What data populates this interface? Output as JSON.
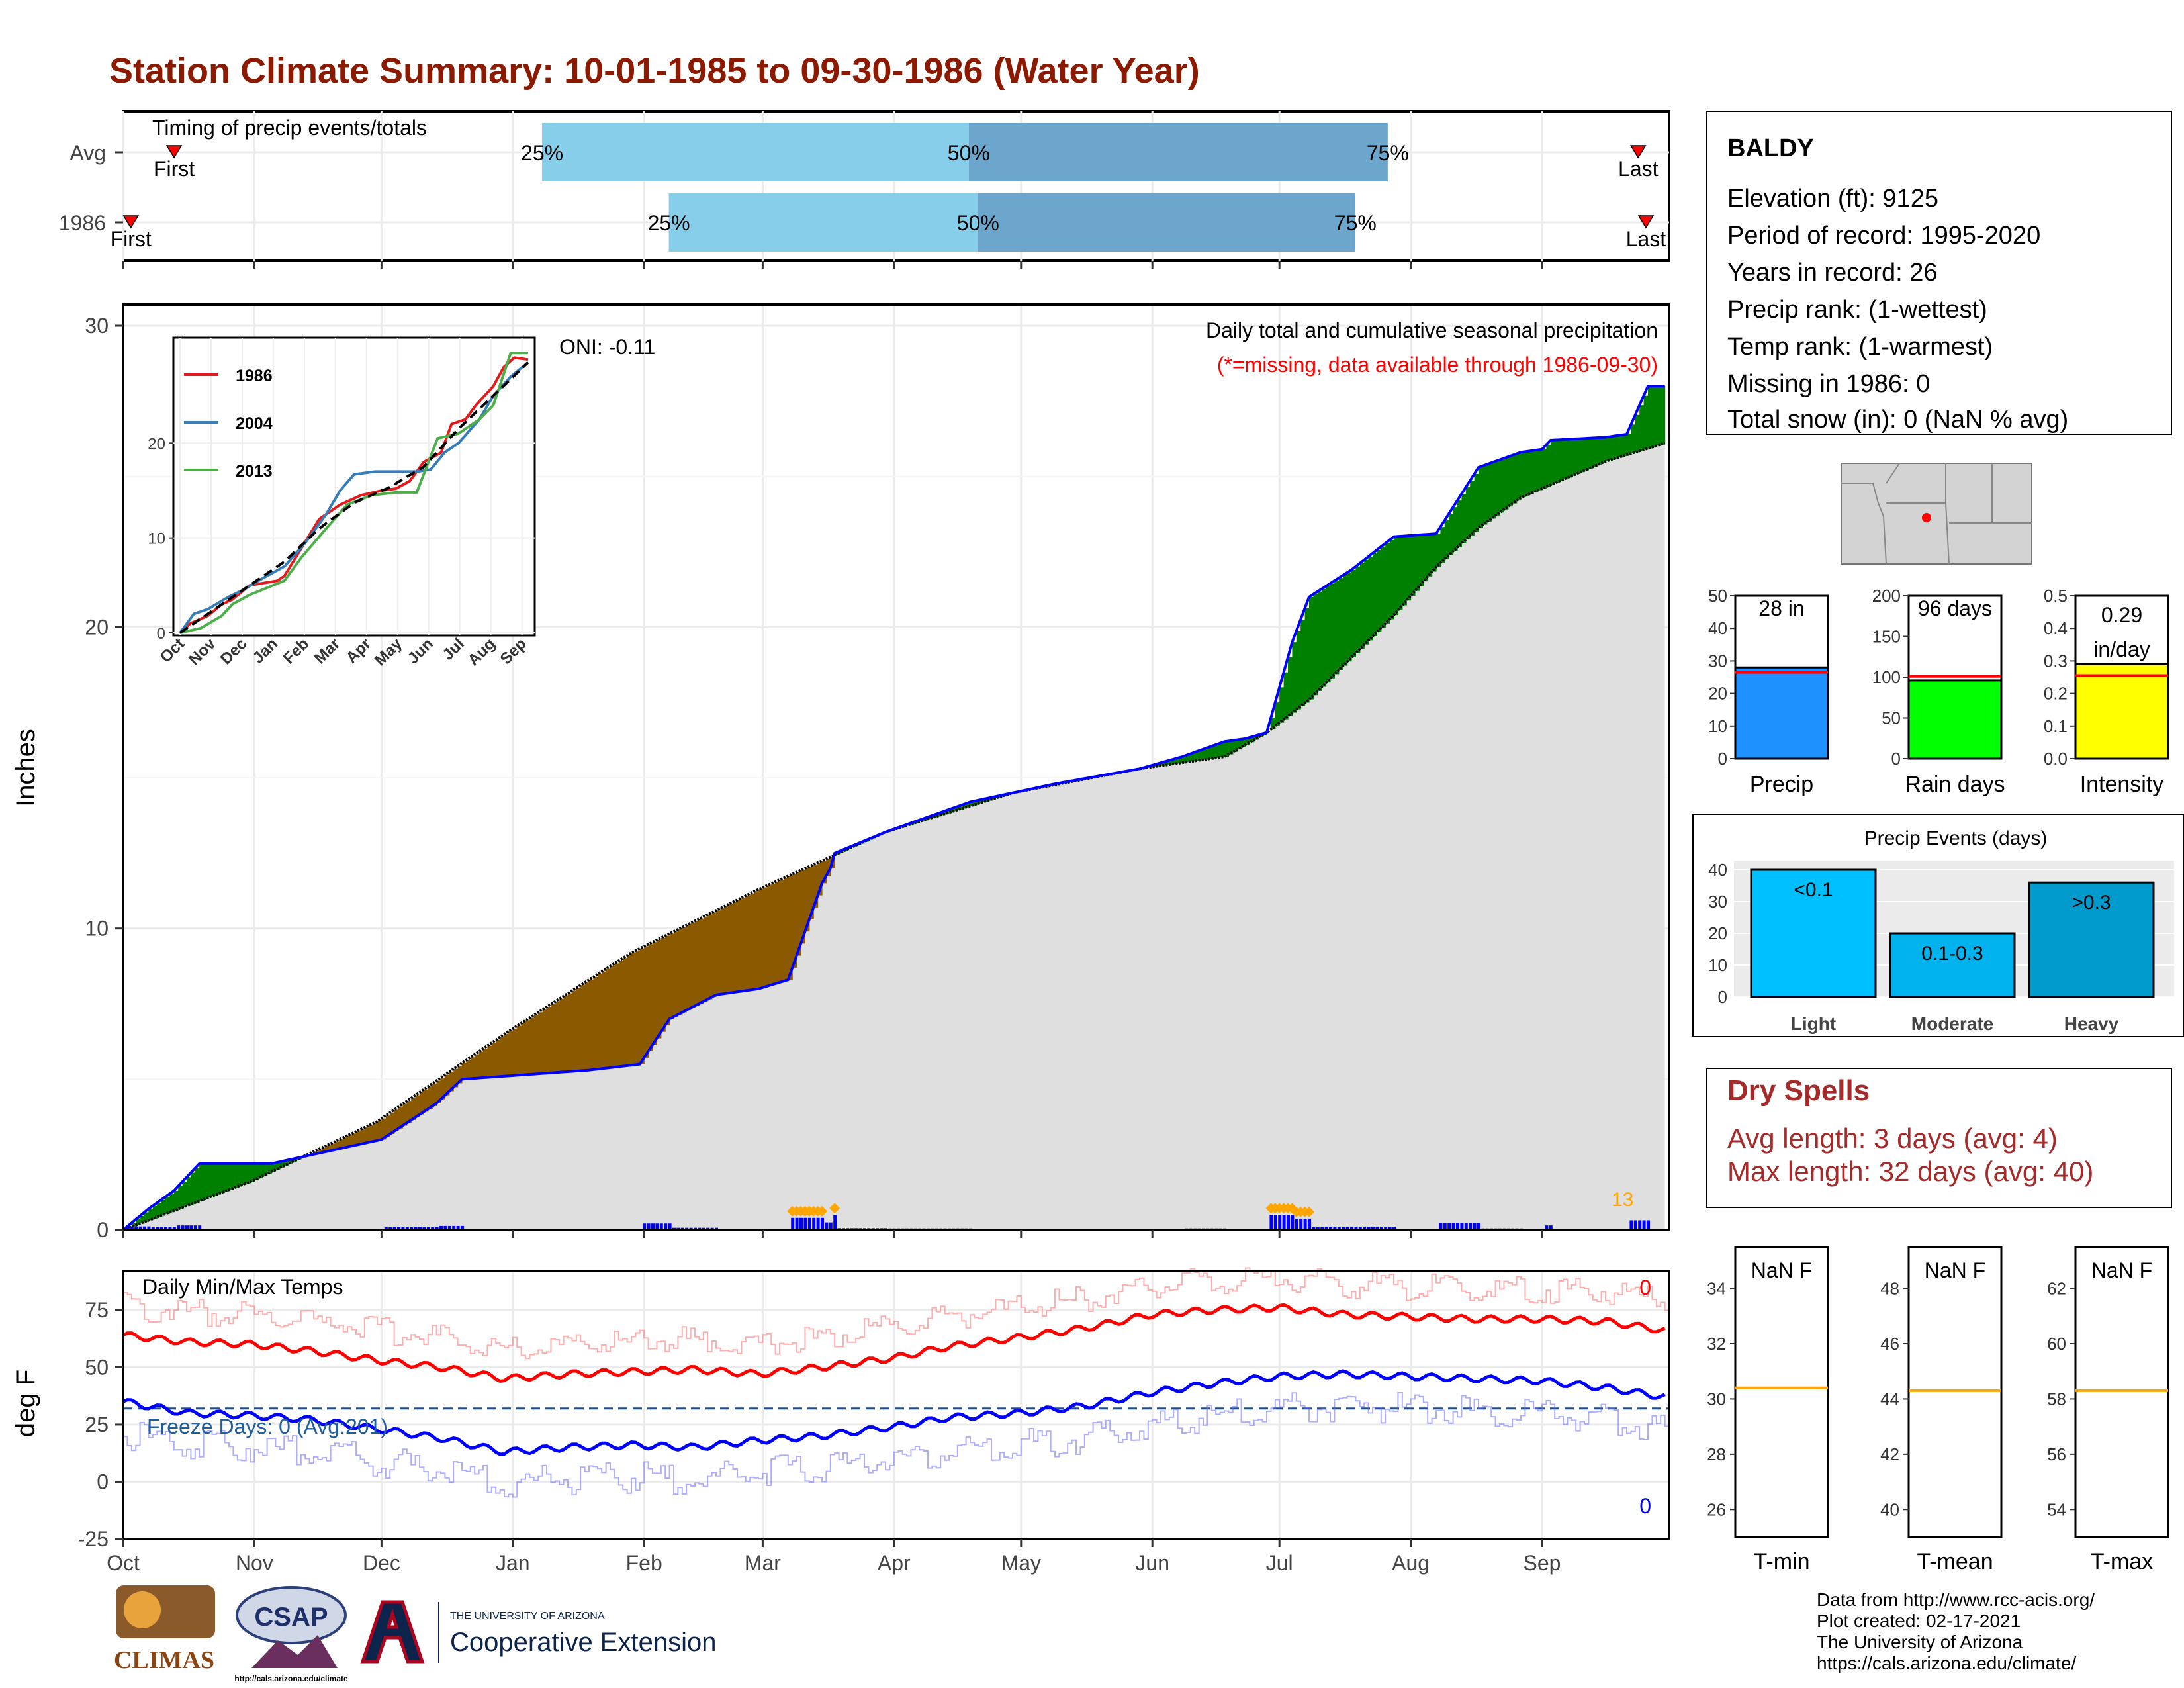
{
  "title": "Station Climate Summary: 10-01-1985 to 09-30-1986 (Water Year)",
  "colors": {
    "title": "#8B1A00",
    "bar_light": "#87CEEB",
    "bar_dark": "#6CA6CD",
    "marker": "#FF0000",
    "deficit": "#8B5A00",
    "surplus": "#008000",
    "baseline_fill": "#DFDFDF",
    "cum_line": "#0000FF",
    "daily_bar": "#0000FF",
    "heavy_marker": "#FFA500",
    "tmax_avg": "#FF0000",
    "tmin_avg": "#0000FF",
    "precip_bar": "#1E90FF",
    "raindays_bar": "#00FF00",
    "intensity_bar": "#FFFF00",
    "avg_line": "#FF0000",
    "light_bar": "#00BFFF",
    "moderate_bar": "#00B2EE",
    "heavy_bar": "#009ACD",
    "dry_spells": "#A52A2A",
    "orange_line": "#FFA500"
  },
  "timing_panel": {
    "heading": "Timing of precip events/totals",
    "rows": [
      {
        "label": "Avg",
        "first_label": "First",
        "last_label": "Last",
        "first_frac": 0.033,
        "p25": 0.271,
        "p50": 0.547,
        "p75": 0.818,
        "last_frac": 0.98
      },
      {
        "label": "1986",
        "first_label": "First",
        "last_label": "Last",
        "first_frac": 0.005,
        "p25": 0.353,
        "p50": 0.553,
        "p75": 0.797,
        "last_frac": 0.985
      }
    ],
    "pct_labels": [
      "25%",
      "50%",
      "75%"
    ]
  },
  "precip_panel": {
    "ylabel": "Inches",
    "yticks": [
      "0",
      "10",
      "20",
      "30"
    ],
    "ylim": [
      0,
      30
    ],
    "oni_text": "ONI: -0.11",
    "caption1": "Daily total and cumulative seasonal precipitation",
    "caption2": "(*=missing, data available through 1986-09-30)",
    "corner_label": "13",
    "months": [
      "Oct",
      "Nov",
      "Dec",
      "Jan",
      "Feb",
      "Mar",
      "Apr",
      "May",
      "Jun",
      "Jul",
      "Aug",
      "Sep"
    ],
    "month_start_days": [
      0,
      31,
      61,
      92,
      123,
      151,
      182,
      212,
      243,
      273,
      304,
      335
    ],
    "days_total": 365
  },
  "chart_data": [
    {
      "type": "area",
      "title": "Daily total and cumulative seasonal precipitation",
      "ylabel": "Inches",
      "ylim": [
        0,
        30
      ],
      "x_units": "day of water year",
      "series": [
        {
          "values_x": [
            0,
            6,
            12,
            18,
            35,
            61,
            74,
            80,
            90,
            110,
            122,
            129,
            140,
            150,
            157,
            165,
            167,
            168,
            180,
            200,
            220,
            240,
            250,
            260,
            265,
            270,
            276,
            280,
            290,
            300,
            310,
            320,
            330,
            335,
            337,
            350,
            355,
            360,
            364
          ],
          "values_y": [
            0,
            0.7,
            1.3,
            2.2,
            2.2,
            3.0,
            4.2,
            5.0,
            5.1,
            5.3,
            5.5,
            7.0,
            7.8,
            8.0,
            8.3,
            11.5,
            12.0,
            12.5,
            13.2,
            14.2,
            14.8,
            15.3,
            15.7,
            16.2,
            16.3,
            16.5,
            19.5,
            21.0,
            21.9,
            23.0,
            23.1,
            25.3,
            25.8,
            25.9,
            26.2,
            26.3,
            26.4,
            28.0,
            28.0
          ]
        },
        {
          "values_x": [
            0,
            30,
            60,
            90,
            120,
            150,
            180,
            210,
            240,
            260,
            265,
            270,
            280,
            290,
            300,
            310,
            320,
            330,
            340,
            350,
            364
          ],
          "values_y": [
            0,
            1.6,
            3.6,
            6.5,
            9.2,
            11.3,
            13.2,
            14.5,
            15.3,
            15.7,
            16.1,
            16.5,
            17.6,
            19.0,
            20.4,
            22.0,
            23.3,
            24.3,
            24.9,
            25.5,
            26.1
          ]
        }
      ]
    },
    {
      "type": "bar",
      "title": "",
      "categories": [
        "Precip",
        "Rain days",
        "Intensity"
      ],
      "values": [
        28,
        96,
        0.29
      ],
      "averages": [
        26.5,
        101,
        0.255
      ],
      "labels": [
        "28 in",
        "96 days",
        "0.29 in/day"
      ],
      "ylims": [
        [
          0,
          50
        ],
        [
          0,
          200
        ],
        [
          0,
          0.5
        ]
      ],
      "yticks": [
        [
          "0",
          "10",
          "20",
          "30",
          "40",
          "50"
        ],
        [
          "0",
          "50",
          "100",
          "150",
          "200"
        ],
        [
          "0.0",
          "0.1",
          "0.2",
          "0.3",
          "0.4",
          "0.5"
        ]
      ]
    },
    {
      "type": "bar",
      "title": "Precip Events (days)",
      "categories": [
        "Light",
        "Moderate",
        "Heavy"
      ],
      "values": [
        40,
        20,
        36
      ],
      "bar_labels": [
        "<0.1",
        "0.1-0.3",
        ">0.3"
      ],
      "ylim": [
        0,
        40
      ],
      "yticks": [
        "0",
        "10",
        "20",
        "30",
        "40"
      ]
    },
    {
      "type": "line",
      "title": "Daily Min/Max Temps",
      "ylabel": "deg F",
      "ylim": [
        -25,
        92
      ],
      "yticks": [
        "-25",
        "0",
        "25",
        "50",
        "75"
      ],
      "freeze_line": 32,
      "avg_max_x": [
        0,
        15,
        30,
        45,
        60,
        75,
        90,
        105,
        120,
        135,
        150,
        165,
        182,
        195,
        212,
        227,
        243,
        258,
        273,
        288,
        304,
        319,
        335,
        350,
        364
      ],
      "avg_max_y": [
        64,
        61,
        60,
        57,
        53,
        50,
        45,
        47,
        48,
        49,
        47,
        50,
        54,
        59,
        63,
        67,
        73,
        75,
        76,
        73,
        72,
        71,
        71,
        70,
        66
      ],
      "avg_min_x": [
        0,
        15,
        30,
        45,
        60,
        75,
        90,
        105,
        120,
        135,
        150,
        165,
        182,
        195,
        212,
        227,
        243,
        258,
        273,
        288,
        304,
        319,
        335,
        350,
        364
      ],
      "avg_min_y": [
        35,
        30,
        29,
        27,
        23,
        19,
        13,
        15,
        16,
        15,
        18,
        20,
        24,
        28,
        30,
        33,
        39,
        43,
        46,
        47,
        46,
        45,
        44,
        41,
        37
      ]
    }
  ],
  "temp_panel": {
    "title": "Daily Min/Max Temps",
    "ylabel": "deg F",
    "freeze_text": "Freeze Days: 0 (Avg:201)",
    "max_missing": "0",
    "min_missing": "0"
  },
  "station": {
    "name": "BALDY",
    "elevation": "Elevation (ft): 9125",
    "period": "Period of record: 1995-2020",
    "years": "Years in record: 26",
    "precip_rank": "Precip rank:  (1-wettest)",
    "temp_rank": "Temp rank:  (1-warmest)",
    "missing": "Missing in 1986: 0",
    "snow": "Total snow (in): 0 (NaN % avg)"
  },
  "inset": {
    "legend": [
      "1986",
      "2004",
      "2013"
    ],
    "legend_colors": [
      "#E41A1C",
      "#377EB8",
      "#4DAF4A"
    ],
    "yticks": [
      "0",
      "10",
      "20"
    ],
    "ylim": [
      0,
      30
    ],
    "months": [
      "Oct",
      "Nov",
      "Dec",
      "Jan",
      "Feb",
      "Mar",
      "Apr",
      "May",
      "Jun",
      "Jul",
      "Aug",
      "Sep"
    ],
    "avg_x": [
      0,
      0.1,
      0.2,
      0.3,
      0.4,
      0.5,
      0.6,
      0.7,
      0.8,
      0.9,
      1.0
    ],
    "avg_y": [
      0,
      2.5,
      5,
      7.5,
      11,
      13.7,
      15.3,
      17.5,
      21.5,
      25,
      28.5
    ],
    "lines": [
      {
        "x": [
          0,
          0.03,
          0.08,
          0.12,
          0.15,
          0.2,
          0.28,
          0.3,
          0.35,
          0.4,
          0.46,
          0.52,
          0.58,
          0.62,
          0.66,
          0.7,
          0.75,
          0.78,
          0.82,
          0.85,
          0.9,
          0.93,
          0.96,
          1.0
        ],
        "y": [
          0,
          1,
          1.8,
          3,
          3.5,
          5,
          5.5,
          6,
          9,
          12,
          13.5,
          14.5,
          15,
          15.2,
          16,
          18,
          19,
          22,
          22.5,
          24,
          26,
          28,
          29,
          28.8
        ]
      },
      {
        "x": [
          0,
          0.04,
          0.08,
          0.14,
          0.18,
          0.24,
          0.3,
          0.36,
          0.42,
          0.46,
          0.5,
          0.56,
          0.62,
          0.68,
          0.72,
          0.76,
          0.8,
          0.86,
          0.9,
          0.95,
          1.0
        ],
        "y": [
          0,
          2,
          2.5,
          3.8,
          4.5,
          5.8,
          7,
          9.5,
          12.5,
          15,
          16.7,
          17,
          17,
          17,
          17.2,
          19,
          20,
          22.5,
          25,
          27,
          28.5
        ]
      },
      {
        "x": [
          0,
          0.06,
          0.12,
          0.15,
          0.2,
          0.3,
          0.35,
          0.42,
          0.48,
          0.55,
          0.62,
          0.68,
          0.74,
          0.8,
          0.86,
          0.9,
          0.95,
          1.0
        ],
        "y": [
          0,
          0.5,
          1.8,
          3,
          4,
          5.5,
          8,
          11,
          13.5,
          14.5,
          14.8,
          14.8,
          20.5,
          21,
          22.5,
          24,
          29.5,
          29.5
        ]
      }
    ]
  },
  "mini_bars": {
    "categories": [
      "Precip",
      "Rain days",
      "Intensity"
    ],
    "labels": [
      "28 in",
      "96 days",
      "0.29"
    ],
    "label2": "in/day"
  },
  "events_panel": {
    "title": "Precip Events (days)",
    "categories": [
      "Light",
      "Moderate",
      "Heavy"
    ],
    "bar_labels": [
      "<0.1",
      "0.1-0.3",
      ">0.3"
    ]
  },
  "dry_spells": {
    "title": "Dry Spells",
    "avg": "Avg length: 3 days (avg: 4)",
    "max": "Max length: 32 days (avg: 40)"
  },
  "temp_boxes": [
    {
      "label": "T-min",
      "value": "NaN F",
      "yticks": [
        "26",
        "28",
        "30",
        "32",
        "34"
      ],
      "ylim": [
        25,
        35.5
      ],
      "avg": 30.4
    },
    {
      "label": "T-mean",
      "value": "NaN F",
      "yticks": [
        "40",
        "42",
        "44",
        "46",
        "48"
      ],
      "ylim": [
        39,
        49.5
      ],
      "avg": 44.3
    },
    {
      "label": "T-max",
      "value": "NaN F",
      "yticks": [
        "54",
        "56",
        "58",
        "60",
        "62"
      ],
      "ylim": [
        53,
        63.5
      ],
      "avg": 58.3
    }
  ],
  "footer": {
    "line1": "Data from http://www.rcc-acis.org/",
    "line2": "Plot created: 02-17-2021",
    "line3": "The University of Arizona",
    "line4": "https://cals.arizona.edu/climate/"
  },
  "logos": {
    "climas": "CLIMAS",
    "csap": "CSAP",
    "csap_url": "http://cals.arizona.edu/climate",
    "ua_small": "THE UNIVERSITY OF ARIZONA",
    "ua_big": "Cooperative Extension"
  }
}
